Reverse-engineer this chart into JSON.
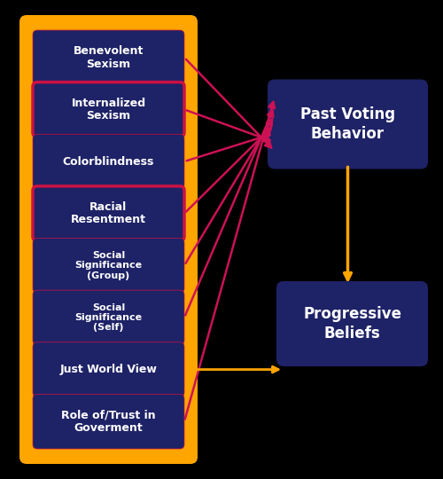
{
  "background_color": "#000000",
  "outer_box_color": "#FFA500",
  "inner_box_color": "#1e2266",
  "inner_box_edge_color": "#cc1144",
  "right_box_color": "#1e2266",
  "text_color": "#ffffff",
  "crimson_arrow_color": "#cc1155",
  "gold_arrow_color": "#FFA500",
  "left_labels": [
    "Benevolent\nSexism",
    "Internalized\nSexism",
    "Colorblindness",
    "Racial\nResentment",
    "Social\nSignificance\n(Group)",
    "Social\nSignificance\n(Self)",
    "Just World View",
    "Role of/Trust in\nGoverment"
  ],
  "left_label_sizes": [
    9,
    9,
    9,
    9,
    8,
    8,
    9,
    9
  ],
  "right_labels": [
    "Past Voting\nBehavior",
    "Progressive\nBeliefs"
  ],
  "crimson_arrows_from": [
    0,
    1,
    2,
    3,
    4,
    5,
    7
  ],
  "gold_arrow_from_jw": 6
}
